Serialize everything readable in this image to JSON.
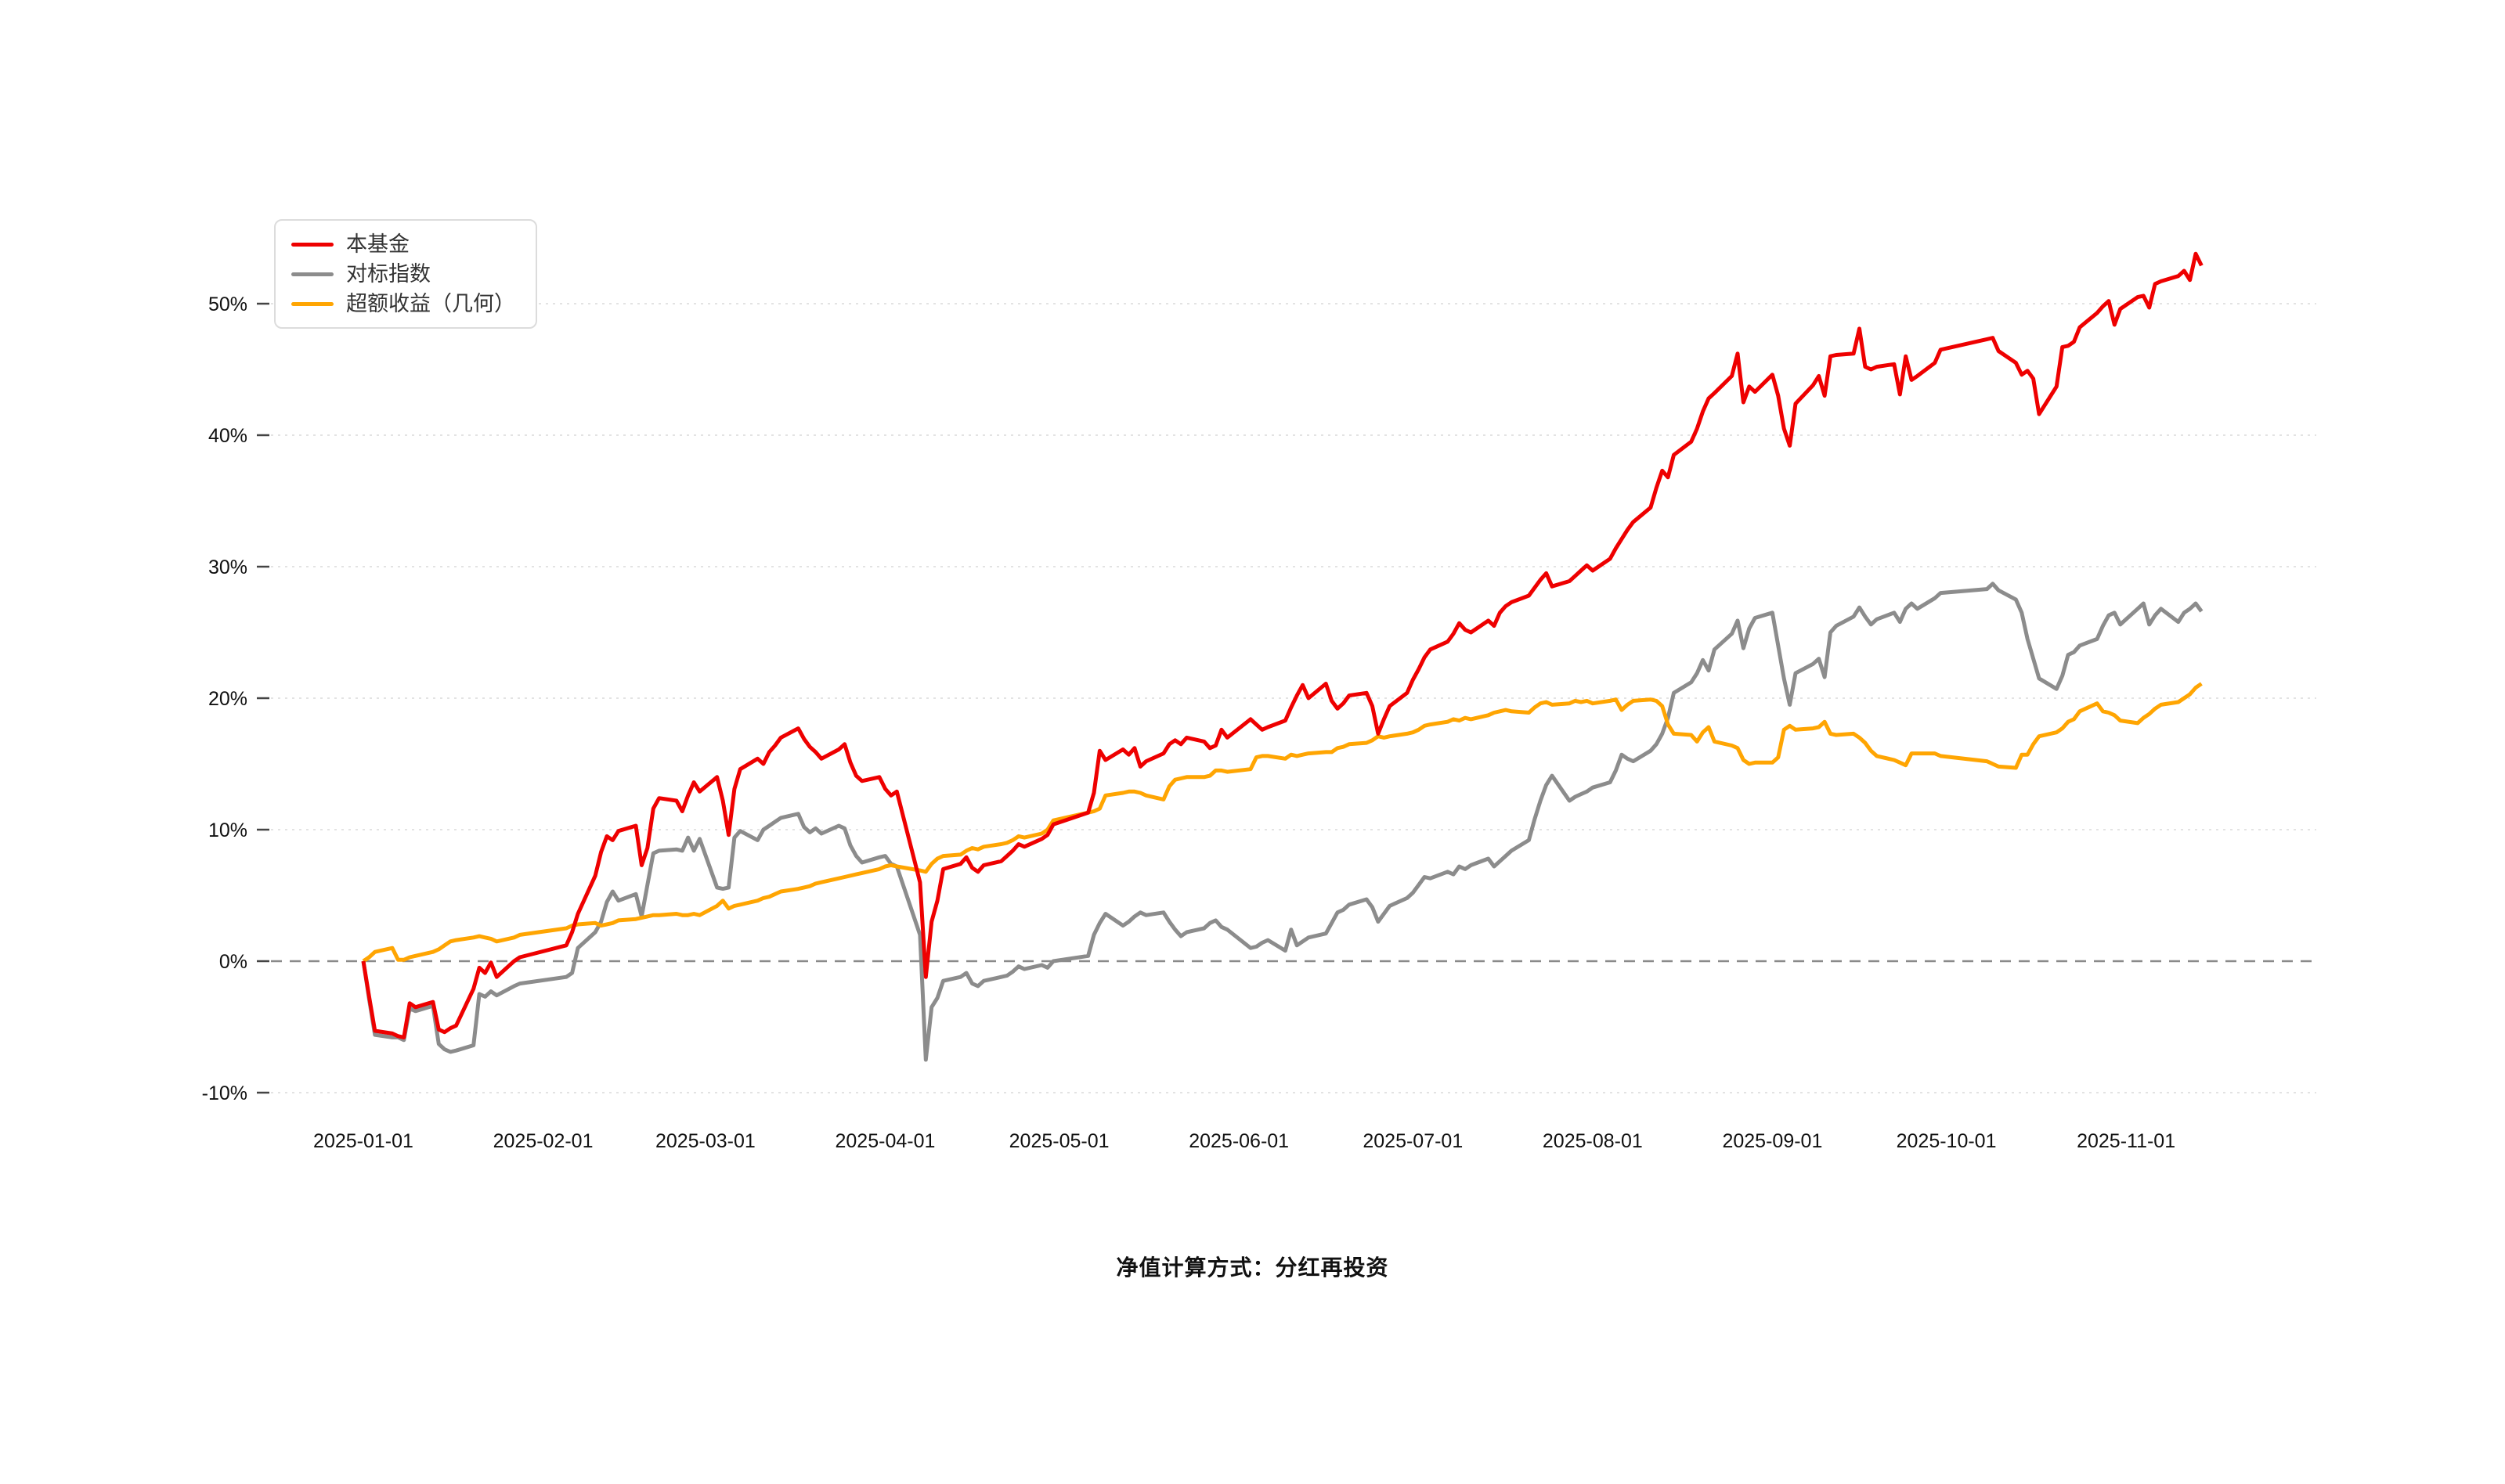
{
  "legend": {
    "items": [
      {
        "label": "本基金",
        "color": "#ee0000"
      },
      {
        "label": "对标指数",
        "color": "#8c8c8c"
      },
      {
        "label": "超额收益（几何）",
        "color": "#ffa502"
      }
    ]
  },
  "footer": {
    "note": "净值计算方式：分红再投资"
  },
  "chart_data": {
    "type": "line",
    "title": "",
    "xlabel": "",
    "ylabel": "",
    "grid": "horizontal-dotted",
    "zero_line": "dashed",
    "legend_position": "top-left",
    "ylim": [
      -12,
      58.5
    ],
    "y_ticks": [
      -10,
      0,
      10,
      20,
      30,
      40,
      50
    ],
    "y_tick_suffix": "%",
    "x_tick_labels": [
      "2025-01-01",
      "2025-02-01",
      "2025-03-01",
      "2025-04-01",
      "2025-05-01",
      "2025-06-01",
      "2025-07-01",
      "2025-08-01",
      "2025-09-01",
      "2025-10-01",
      "2025-11-01"
    ],
    "x_tick_day_offsets": [
      0,
      31,
      59,
      90,
      120,
      151,
      181,
      212,
      243,
      273,
      304
    ],
    "series": [
      {
        "name": "本基金",
        "color": "#ee0000",
        "row_index": 1
      },
      {
        "name": "对标指数",
        "color": "#8c8c8c",
        "row_index": 2
      },
      {
        "name": "超额收益（几何）",
        "color": "#ffa502",
        "row_index": 3
      }
    ],
    "rows": [
      [
        "2025-01-01",
        0,
        0,
        0
      ],
      [
        "2025-01-02",
        -2.7,
        -2.9,
        0.3
      ],
      [
        "2025-01-03",
        -5.3,
        -5.6,
        0.7
      ],
      [
        "2025-01-06",
        -5.5,
        -5.8,
        1.0
      ],
      [
        "2025-01-07",
        -5.7,
        -5.8,
        0.1
      ],
      [
        "2025-01-08",
        -5.8,
        -6.0,
        0.1
      ],
      [
        "2025-01-09",
        -3.2,
        -3.6,
        0.3
      ],
      [
        "2025-01-10",
        -3.5,
        -3.8,
        0.4
      ],
      [
        "2025-01-13",
        -3.1,
        -3.4,
        0.7
      ],
      [
        "2025-01-14",
        -5.2,
        -6.3,
        0.9
      ],
      [
        "2025-01-15",
        -5.4,
        -6.7,
        1.2
      ],
      [
        "2025-01-16",
        -5.1,
        -6.9,
        1.5
      ],
      [
        "2025-01-17",
        -4.9,
        -6.8,
        1.6
      ],
      [
        "2025-01-20",
        -2.1,
        -6.4,
        1.8
      ],
      [
        "2025-01-21",
        -0.5,
        -2.5,
        1.9
      ],
      [
        "2025-01-22",
        -0.9,
        -2.7,
        1.8
      ],
      [
        "2025-01-23",
        -0.1,
        -2.3,
        1.7
      ],
      [
        "2025-01-24",
        -1.2,
        -2.6,
        1.5
      ],
      [
        "2025-01-27",
        0.0,
        -1.9,
        1.8
      ],
      [
        "2025-01-28",
        0.3,
        -1.7,
        2.0
      ],
      [
        "2025-02-05",
        1.2,
        -1.2,
        2.5
      ],
      [
        "2025-02-06",
        2.2,
        -0.9,
        2.7
      ],
      [
        "2025-02-07",
        3.6,
        1.0,
        2.8
      ],
      [
        "2025-02-10",
        6.5,
        2.2,
        2.9
      ],
      [
        "2025-02-11",
        8.3,
        3.0,
        2.7
      ],
      [
        "2025-02-12",
        9.5,
        4.5,
        2.8
      ],
      [
        "2025-02-13",
        9.2,
        5.3,
        2.9
      ],
      [
        "2025-02-14",
        9.9,
        4.6,
        3.1
      ],
      [
        "2025-02-17",
        10.3,
        5.1,
        3.2
      ],
      [
        "2025-02-18",
        7.3,
        3.4,
        3.3
      ],
      [
        "2025-02-19",
        8.6,
        5.8,
        3.4
      ],
      [
        "2025-02-20",
        11.6,
        8.2,
        3.5
      ],
      [
        "2025-02-21",
        12.4,
        8.4,
        3.5
      ],
      [
        "2025-02-24",
        12.2,
        8.5,
        3.6
      ],
      [
        "2025-02-25",
        11.4,
        8.4,
        3.5
      ],
      [
        "2025-02-26",
        12.6,
        9.4,
        3.5
      ],
      [
        "2025-02-27",
        13.6,
        8.4,
        3.6
      ],
      [
        "2025-02-28",
        12.9,
        9.3,
        3.5
      ],
      [
        "2025-03-03",
        14.0,
        5.6,
        4.2
      ],
      [
        "2025-03-04",
        12.2,
        5.5,
        4.6
      ],
      [
        "2025-03-05",
        9.6,
        5.6,
        4.0
      ],
      [
        "2025-03-06",
        13.1,
        9.4,
        4.2
      ],
      [
        "2025-03-07",
        14.6,
        9.9,
        4.3
      ],
      [
        "2025-03-10",
        15.4,
        9.2,
        4.6
      ],
      [
        "2025-03-11",
        15.0,
        10.0,
        4.8
      ],
      [
        "2025-03-12",
        15.9,
        10.3,
        4.9
      ],
      [
        "2025-03-13",
        16.4,
        10.6,
        5.1
      ],
      [
        "2025-03-14",
        17.0,
        10.9,
        5.3
      ],
      [
        "2025-03-17",
        17.7,
        11.2,
        5.5
      ],
      [
        "2025-03-18",
        16.9,
        10.2,
        5.6
      ],
      [
        "2025-03-19",
        16.3,
        9.8,
        5.7
      ],
      [
        "2025-03-20",
        15.9,
        10.1,
        5.9
      ],
      [
        "2025-03-21",
        15.4,
        9.7,
        6.0
      ],
      [
        "2025-03-24",
        16.1,
        10.3,
        6.3
      ],
      [
        "2025-03-25",
        16.5,
        10.1,
        6.4
      ],
      [
        "2025-03-26",
        15.1,
        8.8,
        6.5
      ],
      [
        "2025-03-27",
        14.1,
        8.0,
        6.6
      ],
      [
        "2025-03-28",
        13.7,
        7.5,
        6.7
      ],
      [
        "2025-03-31",
        14.0,
        7.9,
        7.0
      ],
      [
        "2025-04-01",
        13.1,
        8.0,
        7.2
      ],
      [
        "2025-04-02",
        12.6,
        7.4,
        7.3
      ],
      [
        "2025-04-03",
        12.9,
        7.2,
        7.2
      ],
      [
        "2025-04-07",
        6.0,
        2.0,
        6.9
      ],
      [
        "2025-04-08",
        -1.2,
        -7.5,
        6.8
      ],
      [
        "2025-04-09",
        3.0,
        -3.5,
        7.4
      ],
      [
        "2025-04-10",
        4.6,
        -2.8,
        7.8
      ],
      [
        "2025-04-11",
        7.0,
        -1.5,
        8.0
      ],
      [
        "2025-04-14",
        7.4,
        -1.2,
        8.1
      ],
      [
        "2025-04-15",
        7.9,
        -0.9,
        8.4
      ],
      [
        "2025-04-16",
        7.1,
        -1.7,
        8.6
      ],
      [
        "2025-04-17",
        6.8,
        -1.9,
        8.5
      ],
      [
        "2025-04-18",
        7.3,
        -1.5,
        8.7
      ],
      [
        "2025-04-21",
        7.6,
        -1.2,
        8.9
      ],
      [
        "2025-04-22",
        8.0,
        -1.1,
        9.0
      ],
      [
        "2025-04-23",
        8.4,
        -0.8,
        9.2
      ],
      [
        "2025-04-24",
        8.9,
        -0.4,
        9.5
      ],
      [
        "2025-04-25",
        8.7,
        -0.6,
        9.4
      ],
      [
        "2025-04-28",
        9.3,
        -0.3,
        9.7
      ],
      [
        "2025-04-29",
        9.6,
        -0.5,
        10.0
      ],
      [
        "2025-04-30",
        10.4,
        0.0,
        10.7
      ],
      [
        "2025-05-06",
        11.3,
        0.4,
        11.3
      ],
      [
        "2025-05-07",
        12.8,
        2.0,
        11.4
      ],
      [
        "2025-05-08",
        16.0,
        2.9,
        11.6
      ],
      [
        "2025-05-09",
        15.3,
        3.6,
        12.6
      ],
      [
        "2025-05-12",
        16.1,
        2.7,
        12.8
      ],
      [
        "2025-05-13",
        15.7,
        3.0,
        12.9
      ],
      [
        "2025-05-14",
        16.2,
        3.4,
        12.9
      ],
      [
        "2025-05-15",
        14.8,
        3.7,
        12.8
      ],
      [
        "2025-05-16",
        15.2,
        3.5,
        12.6
      ],
      [
        "2025-05-19",
        15.8,
        3.7,
        12.3
      ],
      [
        "2025-05-20",
        16.5,
        3.0,
        13.3
      ],
      [
        "2025-05-21",
        16.8,
        2.4,
        13.8
      ],
      [
        "2025-05-22",
        16.5,
        1.9,
        13.9
      ],
      [
        "2025-05-23",
        17.0,
        2.2,
        14.0
      ],
      [
        "2025-05-26",
        16.7,
        2.5,
        14.0
      ],
      [
        "2025-05-27",
        16.2,
        2.9,
        14.1
      ],
      [
        "2025-05-28",
        16.4,
        3.1,
        14.5
      ],
      [
        "2025-05-29",
        17.6,
        2.6,
        14.5
      ],
      [
        "2025-05-30",
        17.0,
        2.4,
        14.4
      ],
      [
        "2025-06-03",
        18.4,
        1.0,
        14.6
      ],
      [
        "2025-06-04",
        18.0,
        1.1,
        15.5
      ],
      [
        "2025-06-05",
        17.6,
        1.4,
        15.6
      ],
      [
        "2025-06-06",
        17.8,
        1.6,
        15.6
      ],
      [
        "2025-06-09",
        18.3,
        0.8,
        15.4
      ],
      [
        "2025-06-10",
        19.3,
        2.4,
        15.7
      ],
      [
        "2025-06-11",
        20.2,
        1.2,
        15.6
      ],
      [
        "2025-06-12",
        21.0,
        1.5,
        15.7
      ],
      [
        "2025-06-13",
        20.0,
        1.8,
        15.8
      ],
      [
        "2025-06-16",
        21.1,
        2.1,
        15.9
      ],
      [
        "2025-06-17",
        19.8,
        2.9,
        15.9
      ],
      [
        "2025-06-18",
        19.2,
        3.7,
        16.2
      ],
      [
        "2025-06-19",
        19.6,
        3.9,
        16.3
      ],
      [
        "2025-06-20",
        20.2,
        4.3,
        16.5
      ],
      [
        "2025-06-23",
        20.4,
        4.7,
        16.6
      ],
      [
        "2025-06-24",
        19.4,
        4.1,
        16.8
      ],
      [
        "2025-06-25",
        17.3,
        3.0,
        17.1
      ],
      [
        "2025-06-26",
        18.4,
        3.6,
        17.0
      ],
      [
        "2025-06-27",
        19.4,
        4.2,
        17.1
      ],
      [
        "2025-06-30",
        20.4,
        4.8,
        17.3
      ],
      [
        "2025-07-01",
        21.4,
        5.2,
        17.4
      ],
      [
        "2025-07-02",
        22.2,
        5.8,
        17.6
      ],
      [
        "2025-07-03",
        23.1,
        6.4,
        17.9
      ],
      [
        "2025-07-04",
        23.7,
        6.3,
        18.0
      ],
      [
        "2025-07-07",
        24.3,
        6.8,
        18.2
      ],
      [
        "2025-07-08",
        24.9,
        6.6,
        18.4
      ],
      [
        "2025-07-09",
        25.7,
        7.2,
        18.3
      ],
      [
        "2025-07-10",
        25.2,
        7.0,
        18.5
      ],
      [
        "2025-07-11",
        25.0,
        7.3,
        18.4
      ],
      [
        "2025-07-14",
        25.9,
        7.8,
        18.7
      ],
      [
        "2025-07-15",
        25.5,
        7.2,
        18.9
      ],
      [
        "2025-07-16",
        26.5,
        7.6,
        19.0
      ],
      [
        "2025-07-17",
        27.0,
        8.0,
        19.1
      ],
      [
        "2025-07-18",
        27.3,
        8.4,
        19.0
      ],
      [
        "2025-07-21",
        27.8,
        9.2,
        18.9
      ],
      [
        "2025-07-22",
        28.4,
        10.8,
        19.3
      ],
      [
        "2025-07-23",
        29.0,
        12.2,
        19.6
      ],
      [
        "2025-07-24",
        29.5,
        13.4,
        19.7
      ],
      [
        "2025-07-25",
        28.5,
        14.1,
        19.5
      ],
      [
        "2025-07-28",
        28.9,
        12.2,
        19.6
      ],
      [
        "2025-07-29",
        29.3,
        12.5,
        19.8
      ],
      [
        "2025-07-30",
        29.7,
        12.7,
        19.7
      ],
      [
        "2025-07-31",
        30.1,
        12.9,
        19.8
      ],
      [
        "2025-08-01",
        29.7,
        13.2,
        19.6
      ],
      [
        "2025-08-04",
        30.6,
        13.6,
        19.8
      ],
      [
        "2025-08-05",
        31.4,
        14.5,
        19.9
      ],
      [
        "2025-08-06",
        32.1,
        15.7,
        19.1
      ],
      [
        "2025-08-07",
        32.8,
        15.4,
        19.5
      ],
      [
        "2025-08-08",
        33.4,
        15.2,
        19.8
      ],
      [
        "2025-08-11",
        34.5,
        16.0,
        19.9
      ],
      [
        "2025-08-12",
        36.0,
        16.5,
        19.8
      ],
      [
        "2025-08-13",
        37.3,
        17.3,
        19.4
      ],
      [
        "2025-08-14",
        36.8,
        18.5,
        18.0
      ],
      [
        "2025-08-15",
        38.5,
        20.4,
        17.3
      ],
      [
        "2025-08-18",
        39.5,
        21.2,
        17.2
      ],
      [
        "2025-08-19",
        40.5,
        21.9,
        16.7
      ],
      [
        "2025-08-20",
        41.8,
        22.9,
        17.4
      ],
      [
        "2025-08-21",
        42.8,
        22.1,
        17.8
      ],
      [
        "2025-08-22",
        43.2,
        23.7,
        16.7
      ],
      [
        "2025-08-25",
        44.5,
        24.9,
        16.4
      ],
      [
        "2025-08-26",
        46.2,
        25.9,
        16.2
      ],
      [
        "2025-08-27",
        42.5,
        23.8,
        15.3
      ],
      [
        "2025-08-28",
        43.7,
        25.3,
        15.0
      ],
      [
        "2025-08-29",
        43.3,
        26.1,
        15.1
      ],
      [
        "2025-09-01",
        44.6,
        26.5,
        15.1
      ],
      [
        "2025-09-02",
        43.0,
        24.0,
        15.5
      ],
      [
        "2025-09-03",
        40.5,
        21.5,
        17.6
      ],
      [
        "2025-09-04",
        39.2,
        19.5,
        17.9
      ],
      [
        "2025-09-05",
        42.4,
        21.9,
        17.6
      ],
      [
        "2025-09-08",
        43.8,
        22.6,
        17.7
      ],
      [
        "2025-09-09",
        44.5,
        23.0,
        17.8
      ],
      [
        "2025-09-10",
        43.0,
        21.6,
        18.2
      ],
      [
        "2025-09-11",
        46.0,
        25.0,
        17.3
      ],
      [
        "2025-09-12",
        46.1,
        25.5,
        17.2
      ],
      [
        "2025-09-15",
        46.2,
        26.2,
        17.3
      ],
      [
        "2025-09-16",
        48.1,
        26.9,
        17.0
      ],
      [
        "2025-09-17",
        45.2,
        26.2,
        16.6
      ],
      [
        "2025-09-18",
        45.0,
        25.6,
        16.0
      ],
      [
        "2025-09-19",
        45.2,
        26.0,
        15.6
      ],
      [
        "2025-09-22",
        45.4,
        26.5,
        15.3
      ],
      [
        "2025-09-23",
        43.1,
        25.8,
        15.1
      ],
      [
        "2025-09-24",
        46.0,
        26.8,
        14.9
      ],
      [
        "2025-09-25",
        44.2,
        27.2,
        15.8
      ],
      [
        "2025-09-26",
        44.5,
        26.8,
        15.8
      ],
      [
        "2025-09-29",
        45.5,
        27.6,
        15.8
      ],
      [
        "2025-09-30",
        46.5,
        28.0,
        15.6
      ],
      [
        "2025-10-08",
        47.3,
        28.3,
        15.2
      ],
      [
        "2025-10-09",
        47.4,
        28.7,
        15.0
      ],
      [
        "2025-10-10",
        46.4,
        28.2,
        14.8
      ],
      [
        "2025-10-13",
        45.5,
        27.5,
        14.7
      ],
      [
        "2025-10-14",
        44.6,
        26.5,
        15.7
      ],
      [
        "2025-10-15",
        44.9,
        24.5,
        15.7
      ],
      [
        "2025-10-16",
        44.3,
        23.0,
        16.5
      ],
      [
        "2025-10-17",
        41.6,
        21.5,
        17.1
      ],
      [
        "2025-10-20",
        43.7,
        20.7,
        17.4
      ],
      [
        "2025-10-21",
        46.7,
        21.7,
        17.7
      ],
      [
        "2025-10-22",
        46.8,
        23.3,
        18.2
      ],
      [
        "2025-10-23",
        47.1,
        23.5,
        18.4
      ],
      [
        "2025-10-24",
        48.2,
        24.0,
        19.0
      ],
      [
        "2025-10-27",
        49.3,
        24.5,
        19.6
      ],
      [
        "2025-10-28",
        49.8,
        25.5,
        19.0
      ],
      [
        "2025-10-29",
        50.2,
        26.3,
        18.9
      ],
      [
        "2025-10-30",
        48.4,
        26.5,
        18.7
      ],
      [
        "2025-10-31",
        49.6,
        25.6,
        18.3
      ],
      [
        "2025-11-03",
        50.5,
        26.8,
        18.1
      ],
      [
        "2025-11-04",
        50.6,
        27.2,
        18.5
      ],
      [
        "2025-11-05",
        49.7,
        25.6,
        18.8
      ],
      [
        "2025-11-06",
        51.5,
        26.3,
        19.2
      ],
      [
        "2025-11-07",
        51.7,
        26.8,
        19.5
      ],
      [
        "2025-11-10",
        52.1,
        25.8,
        19.7
      ],
      [
        "2025-11-11",
        52.5,
        26.5,
        20.0
      ],
      [
        "2025-11-12",
        51.8,
        26.8,
        20.3
      ],
      [
        "2025-11-13",
        53.8,
        27.2,
        20.8
      ],
      [
        "2025-11-14",
        52.9,
        26.6,
        21.1
      ]
    ]
  }
}
